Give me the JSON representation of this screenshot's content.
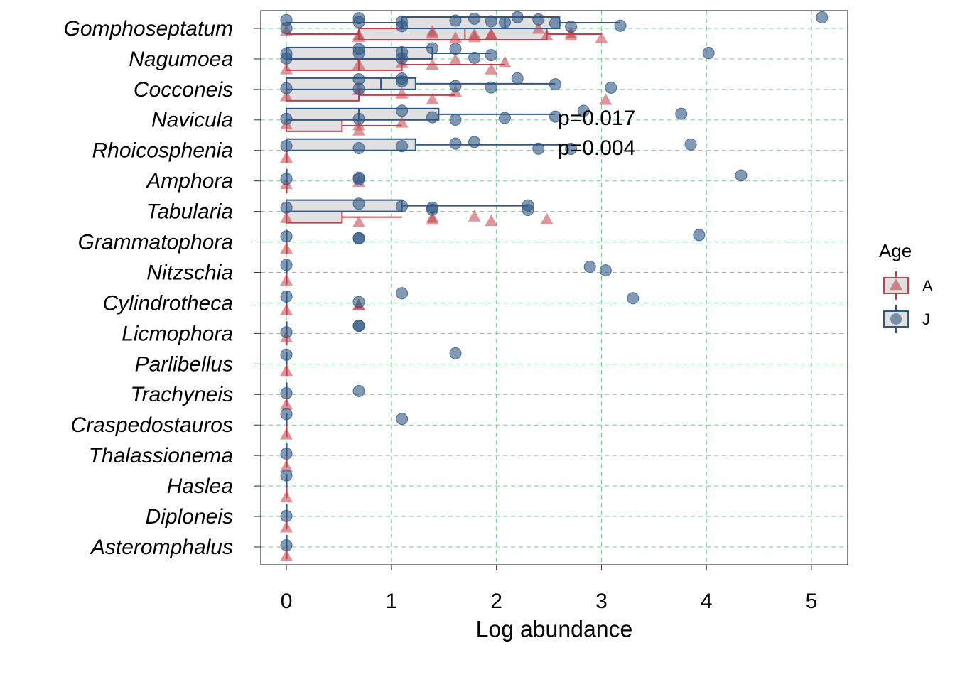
{
  "chart_data": {
    "type": "box",
    "xlabel": "Log abundance",
    "categories": [
      "Gomphoseptatum",
      "Nagumoea",
      "Cocconeis",
      "Navicula",
      "Rhoicosphenia",
      "Amphora",
      "Tabularia",
      "Grammatophora",
      "Nitzschia",
      "Cylindrotheca",
      "Licmophora",
      "Parlibellus",
      "Trachyneis",
      "Craspedostauros",
      "Thalassionema",
      "Haslea",
      "Diploneis",
      "Asteromphalus"
    ],
    "xlim": [
      -0.244,
      5.345
    ],
    "xticks": [
      0,
      1,
      2,
      3,
      4,
      5
    ],
    "grid": true,
    "legend_title": "Age",
    "annotations": [
      "p=0.017",
      "p=0.004"
    ],
    "series": [
      {
        "name": "A",
        "color": "#c0404a",
        "boxes": [
          [
            0,
            0.69,
            1.7,
            2.48,
            3.0
          ],
          [
            0,
            0,
            0.69,
            1.1,
            2.08
          ],
          [
            0,
            0,
            0.69,
            0.69,
            1.61
          ],
          [
            0,
            0,
            0,
            0.53,
            1.1
          ],
          [
            0,
            0,
            0,
            0,
            0
          ],
          [
            0,
            0,
            0,
            0,
            0
          ],
          [
            0,
            0,
            0,
            0.53,
            1.1
          ],
          [
            0,
            0,
            0,
            0,
            0
          ],
          [
            0,
            0,
            0,
            0,
            0
          ],
          [
            0,
            0,
            0,
            0,
            0
          ],
          [
            0,
            0,
            0,
            0,
            0
          ],
          [
            0,
            0,
            0,
            0,
            0
          ],
          [
            0,
            0,
            0,
            0,
            0
          ],
          [
            0,
            0,
            0,
            0,
            0
          ],
          [
            0,
            0,
            0,
            0,
            0
          ],
          [
            0,
            0,
            0,
            0,
            0
          ],
          [
            0,
            0,
            0,
            0,
            0
          ],
          [
            0,
            0,
            0,
            0,
            0
          ]
        ],
        "points": [
          [
            0,
            0.69,
            0.69,
            1.39,
            1.39,
            1.61,
            1.79,
            1.79,
            1.95,
            1.95,
            2.4,
            2.48,
            2.71,
            2.71,
            3.0
          ],
          [
            0,
            0.69,
            1.1,
            1.39,
            1.61,
            1.95,
            2.08
          ],
          [
            0,
            0.69,
            1.1,
            1.39,
            1.61,
            3.04
          ],
          [
            0,
            0.69,
            0.69,
            1.1
          ],
          [
            0
          ],
          [
            0,
            0.69
          ],
          [
            0,
            0.69,
            1.39,
            1.39,
            1.79,
            1.95,
            2.48
          ],
          [
            0
          ],
          [
            0
          ],
          [
            0,
            0.69,
            0.69
          ],
          [
            0
          ],
          [
            0
          ],
          [
            0
          ],
          [
            0
          ],
          [
            0
          ],
          [
            0
          ],
          [
            0
          ],
          [
            0
          ]
        ]
      },
      {
        "name": "J",
        "color": "#2f5685",
        "boxes": [
          [
            0,
            1.1,
            2.08,
            2.6,
            3.18
          ],
          [
            0,
            0,
            1.1,
            1.39,
            1.95
          ],
          [
            0,
            0,
            0.9,
            1.23,
            2.56
          ],
          [
            0,
            0,
            0.69,
            1.45,
            2.56
          ],
          [
            0,
            0,
            0,
            1.23,
            2.71
          ],
          [
            0,
            0,
            0,
            0,
            0
          ],
          [
            0,
            0,
            0,
            1.1,
            2.3
          ],
          [
            0,
            0,
            0,
            0,
            0
          ],
          [
            0,
            0,
            0,
            0,
            0
          ],
          [
            0,
            0,
            0,
            0,
            0
          ],
          [
            0,
            0,
            0,
            0,
            0
          ],
          [
            0,
            0,
            0,
            0,
            0
          ],
          [
            0,
            0,
            0,
            0,
            0
          ],
          [
            0,
            0,
            0,
            0,
            0
          ],
          [
            0,
            0,
            0,
            0,
            0
          ],
          [
            0,
            0,
            0,
            0,
            0
          ],
          [
            0,
            0,
            0,
            0,
            0
          ],
          [
            0,
            0,
            0,
            0,
            0
          ]
        ],
        "points": [
          [
            0,
            0,
            0.69,
            0.69,
            1.1,
            1.1,
            1.61,
            1.79,
            1.95,
            2.08,
            2.2,
            2.4,
            2.56,
            2.71,
            3.18,
            5.1
          ],
          [
            0,
            0,
            0.69,
            0.69,
            1.1,
            1.1,
            1.39,
            1.61,
            1.79,
            1.95,
            4.02
          ],
          [
            0,
            0.69,
            0.69,
            1.1,
            1.1,
            1.61,
            1.95,
            2.2,
            2.56,
            3.09
          ],
          [
            0,
            0.69,
            1.1,
            1.39,
            1.61,
            2.08,
            2.56,
            2.83,
            3.76
          ],
          [
            0,
            0.69,
            1.1,
            1.61,
            1.79,
            2.4,
            2.71,
            3.85
          ],
          [
            0,
            0.69,
            0.69,
            4.33
          ],
          [
            0,
            0.69,
            1.1,
            1.39,
            1.39,
            2.3,
            2.3
          ],
          [
            0,
            0.69,
            0.69,
            3.93
          ],
          [
            0,
            2.89,
            3.04
          ],
          [
            0,
            0.69,
            1.1,
            3.3
          ],
          [
            0,
            0.69,
            0.69
          ],
          [
            0,
            1.61
          ],
          [
            0,
            0.69
          ],
          [
            0,
            1.1
          ],
          [
            0
          ],
          [
            0
          ],
          [
            0
          ],
          [
            0
          ]
        ]
      }
    ]
  }
}
